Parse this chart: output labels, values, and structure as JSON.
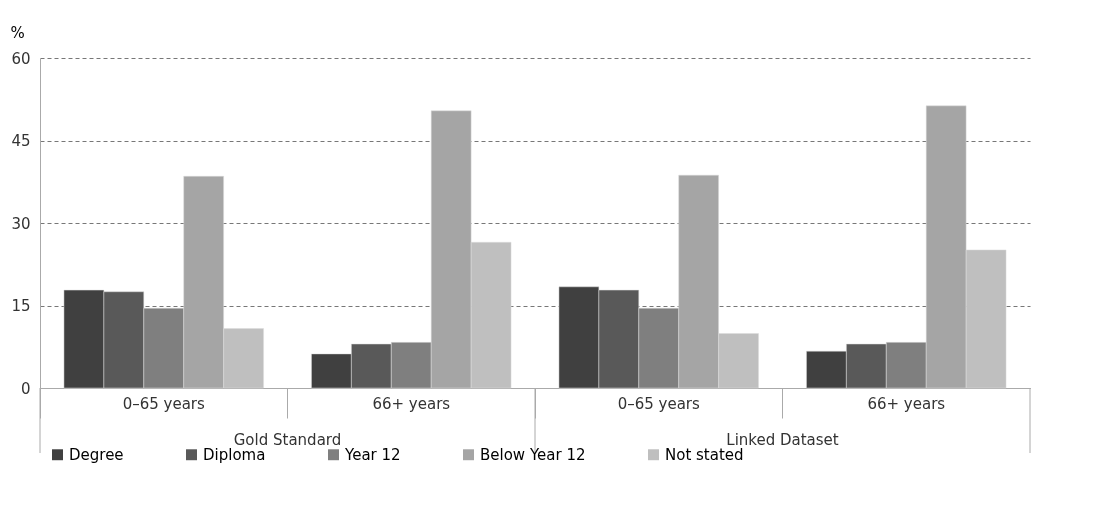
{
  "chart_data": {
    "type": "bar",
    "ylabel": "%",
    "categories": [
      "0–65 years",
      "66+ years",
      "0–65 years",
      "66+ years"
    ],
    "series": [
      {
        "name": "Degree",
        "color": "#404040",
        "values": [
          17.8,
          6.2,
          18.4,
          6.7
        ]
      },
      {
        "name": "Diploma",
        "color": "#595959",
        "values": [
          17.5,
          8.0,
          17.8,
          8.0
        ]
      },
      {
        "name": "Year 12",
        "color": "#7f7f7f",
        "values": [
          14.5,
          8.3,
          14.5,
          8.3
        ]
      },
      {
        "name": "Below Year 12",
        "color": "#a5a5a5",
        "values": [
          38.5,
          50.4,
          38.7,
          51.3
        ]
      },
      {
        "name": "Not stated",
        "color": "#bfbfbf",
        "values": [
          10.8,
          26.5,
          9.9,
          25.1
        ]
      }
    ],
    "annotations": [
      "Gold Standard",
      "Linked Dataset"
    ],
    "ylim": [
      0,
      60
    ],
    "yticks": [
      0,
      15,
      30,
      45,
      60
    ],
    "grid": "y",
    "legend": "bottom"
  }
}
